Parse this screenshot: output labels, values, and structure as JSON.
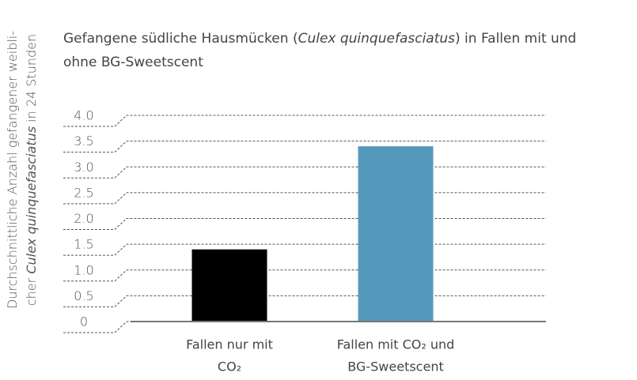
{
  "chart_data": {
    "type": "bar",
    "title": [
      [
        "Gefangene südliche Hausmücken (",
        "Culex quinquefasciatus",
        ") in Fallen mit und"
      ],
      [
        "ohne BG-Sweetscent"
      ]
    ],
    "ylabel": [
      [
        "Durchschnittliche Anzahl gefangener weibli-"
      ],
      [
        "cher ",
        "Culex quinquefasciatus",
        " in 24 Stunden"
      ]
    ],
    "categories": [
      [
        "Fallen nur mit",
        "CO₂"
      ],
      [
        "Fallen mit CO₂ und",
        "BG-Sweetscent"
      ]
    ],
    "values": [
      1.4,
      3.4
    ],
    "colors": [
      "#000000",
      "#5499bc"
    ],
    "ylim": [
      0,
      4
    ],
    "yticks": [
      0,
      0.5,
      {
        "value": 1,
        "label": "1.0"
      },
      1.5,
      {
        "value": 2,
        "label": "2.0"
      },
      2.5,
      {
        "value": 3,
        "label": "3.0"
      },
      3.5,
      {
        "value": 4,
        "label": "4.0"
      }
    ],
    "grid": true
  }
}
